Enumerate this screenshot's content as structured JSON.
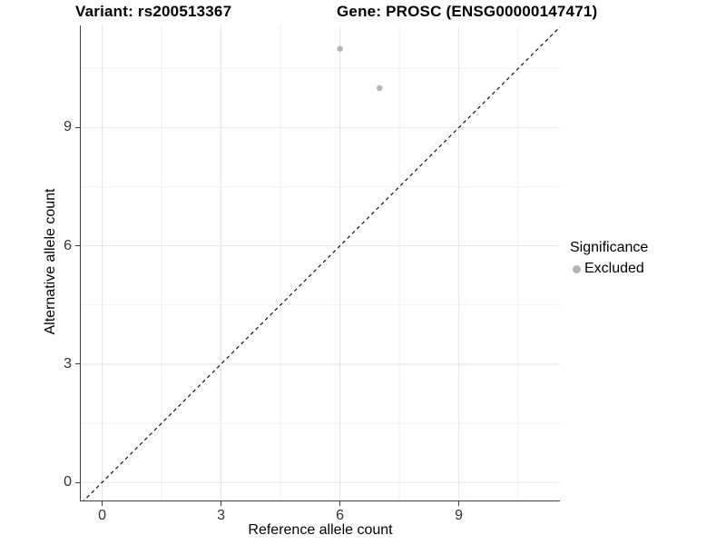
{
  "titles": {
    "variant": "Variant: rs200513367",
    "gene": "Gene: PROSC (ENSG00000147471)"
  },
  "chart_data": {
    "type": "scatter",
    "title": "Variant: rs200513367 | Gene: PROSC (ENSG00000147471)",
    "xlabel": "Reference allele count",
    "ylabel": "Alternative allele count",
    "xlim": [
      -0.54,
      11.55
    ],
    "ylim": [
      -0.46,
      11.59
    ],
    "xticks": [
      0,
      3,
      6,
      9
    ],
    "yticks": [
      0,
      3,
      6,
      9
    ],
    "minor_xticks": [
      1.5,
      4.5,
      7.5,
      10.5
    ],
    "minor_yticks": [
      1.5,
      4.5,
      7.5,
      10.5
    ],
    "grid": true,
    "grid_major_color": "#e4e4e4",
    "grid_minor_color": "#f1f1f1",
    "axis_line_color": "#404040",
    "identity_line": {
      "style": "dashed",
      "color": "#000000",
      "from": -1,
      "to": 12.5
    },
    "point_radius_px": 3.2,
    "series": [
      {
        "name": "Excluded",
        "color": "#b4b4b4",
        "points": [
          {
            "x": 6,
            "y": 11
          },
          {
            "x": 7,
            "y": 10
          }
        ]
      }
    ],
    "legend": {
      "title": "Significance",
      "position": "right",
      "items": [
        {
          "label": "Excluded",
          "color": "#b4b4b4"
        }
      ]
    }
  }
}
